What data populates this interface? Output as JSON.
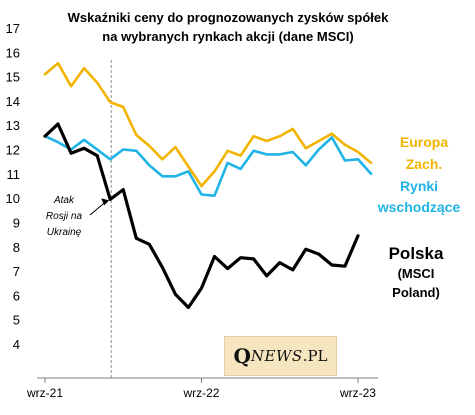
{
  "chart_data": {
    "type": "line",
    "title_lines": [
      "Wskaźniki  ceny do prognozowanych  zysków spółek",
      "na wybranych rynkach akcji (dane MSCI)"
    ],
    "ylim": [
      4,
      17
    ],
    "yticks": [
      "4",
      "5",
      "6",
      "7",
      "8",
      "9",
      "10",
      "11",
      "12",
      "13",
      "14",
      "15",
      "16",
      "17"
    ],
    "x_labels": [
      {
        "label": "wrz-21",
        "index": 0
      },
      {
        "label": "wrz-22",
        "index": 12
      },
      {
        "label": "wrz-23",
        "index": 24
      }
    ],
    "grid": false,
    "series": [
      {
        "key": "europa",
        "color": "#f2b400",
        "values": [
          15.1,
          15.55,
          14.6,
          15.35,
          14.75,
          13.95,
          13.75,
          12.6,
          12.15,
          11.6,
          12.1,
          11.3,
          10.5,
          11.1,
          11.95,
          11.75,
          12.55,
          12.35,
          12.55,
          12.85,
          12.05,
          12.35,
          12.65,
          12.2,
          11.9,
          11.45
        ]
      },
      {
        "key": "rynki",
        "color": "#1fb4e6",
        "values": [
          12.55,
          12.3,
          12.0,
          12.4,
          12.0,
          11.6,
          12.0,
          11.95,
          11.35,
          10.9,
          10.9,
          11.1,
          10.15,
          10.1,
          11.45,
          11.2,
          11.95,
          11.8,
          11.8,
          11.9,
          11.35,
          12.0,
          12.5,
          11.55,
          11.6,
          11.0
        ]
      },
      {
        "key": "polska",
        "color": "#000000",
        "values": [
          12.55,
          13.05,
          11.85,
          12.05,
          11.75,
          9.95,
          10.35,
          8.35,
          8.1,
          7.15,
          6.05,
          5.5,
          6.3,
          7.6,
          7.1,
          7.55,
          7.5,
          6.8,
          7.35,
          7.05,
          7.9,
          7.7,
          7.25,
          7.2,
          8.45
        ]
      }
    ],
    "series_labels": [
      {
        "key": "europa",
        "lines": [
          "Europa",
          "Zach."
        ],
        "color": "#f2b400"
      },
      {
        "key": "rynki",
        "lines": [
          "Rynki",
          "wschodzące"
        ],
        "color": "#1fb4e6"
      },
      {
        "key": "polska",
        "lines": [
          "Polska",
          "(MSCI",
          "Poland)"
        ],
        "color": "#000000"
      }
    ],
    "event_line": {
      "index": 5
    },
    "annotation": {
      "lines": [
        "Atak",
        "Rosji na",
        "Ukrainę"
      ],
      "point_index": 5,
      "point_value": 9.95
    }
  },
  "logo": {
    "q": "Q",
    "rest": "NEWS",
    "suffix": ".PL"
  }
}
